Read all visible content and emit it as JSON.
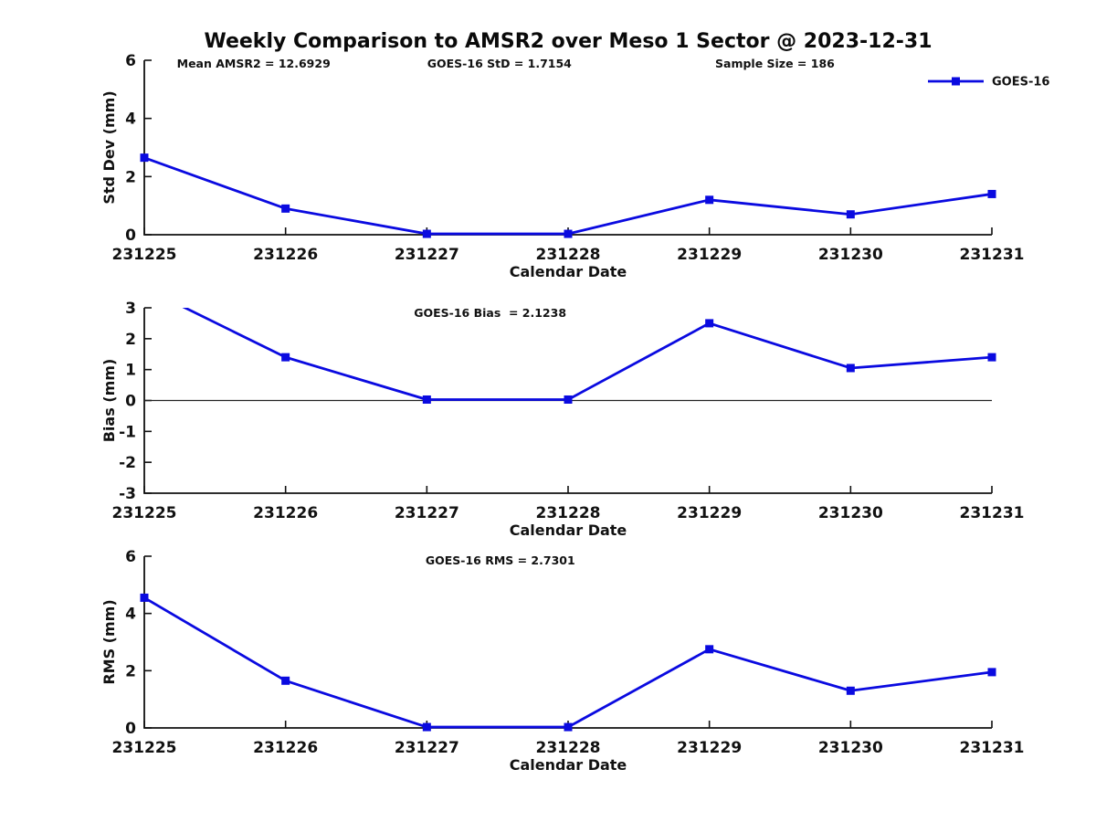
{
  "title": "Weekly Comparison to AMSR2 over Meso 1 Sector @ 2023-12-31",
  "colors": {
    "series": "#0a0ae0",
    "axis": "#111111",
    "zero_line": "#222222",
    "text": "#111111",
    "background": "#ffffff"
  },
  "chart_data": [
    {
      "type": "line",
      "name": "std-dev",
      "ylabel": "Std Dev (mm)",
      "xlabel": "Calendar Date",
      "categories": [
        "231225",
        "231226",
        "231227",
        "231228",
        "231229",
        "231230",
        "231231"
      ],
      "series": [
        {
          "name": "GOES-16",
          "values": [
            2.65,
            0.9,
            0.03,
            0.03,
            1.2,
            0.7,
            1.4
          ]
        }
      ],
      "ylim": [
        0,
        6
      ],
      "yticks": [
        0,
        2,
        4,
        6
      ],
      "grid": false,
      "annotations": [
        "Mean AMSR2 = 12.6929",
        "GOES-16 StD = 1.7154",
        "Sample Size = 186"
      ],
      "legend": {
        "label": "GOES-16",
        "position": "top-right"
      }
    },
    {
      "type": "line",
      "name": "bias",
      "ylabel": "Bias (mm)",
      "xlabel": "Calendar Date",
      "categories": [
        "231225",
        "231226",
        "231227",
        "231228",
        "231229",
        "231230",
        "231231"
      ],
      "series": [
        {
          "name": "GOES-16",
          "values": [
            3.65,
            1.4,
            0.03,
            0.03,
            2.5,
            1.05,
            1.4
          ]
        }
      ],
      "ylim": [
        -3,
        3
      ],
      "yticks": [
        -3,
        -2,
        -1,
        0,
        1,
        2,
        3
      ],
      "grid": false,
      "zero_line": true,
      "clip_to_ylim": true,
      "annotations": [
        "GOES-16 Bias  = 2.1238"
      ]
    },
    {
      "type": "line",
      "name": "rms",
      "ylabel": "RMS (mm)",
      "xlabel": "Calendar Date",
      "categories": [
        "231225",
        "231226",
        "231227",
        "231228",
        "231229",
        "231230",
        "231231"
      ],
      "series": [
        {
          "name": "GOES-16",
          "values": [
            4.55,
            1.65,
            0.03,
            0.03,
            2.75,
            1.3,
            1.95
          ]
        }
      ],
      "ylim": [
        0,
        6
      ],
      "yticks": [
        0,
        2,
        4,
        6
      ],
      "grid": false,
      "annotations": [
        "GOES-16 RMS = 2.7301"
      ]
    }
  ]
}
